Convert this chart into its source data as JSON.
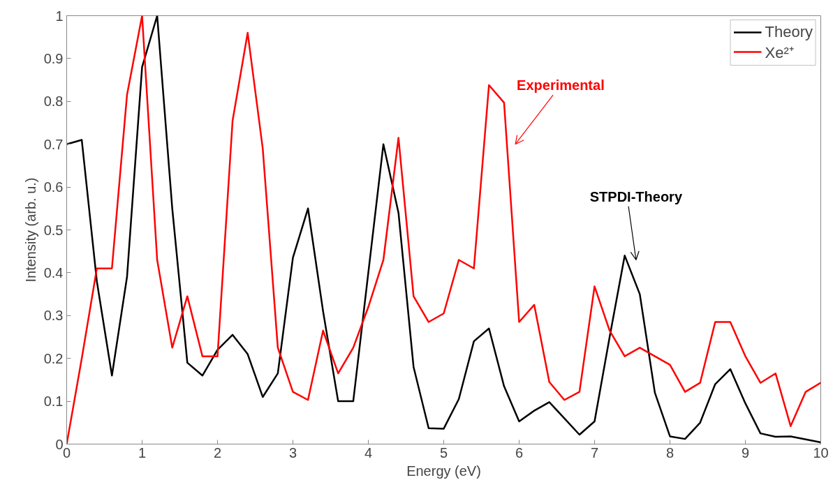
{
  "chart_data": {
    "type": "line",
    "xlabel": "Energy (eV)",
    "ylabel": "Intensity (arb. u.)",
    "x": [
      0,
      0.2,
      0.4,
      0.6,
      0.8,
      1.0,
      1.2,
      1.4,
      1.6,
      1.8,
      2.0,
      2.2,
      2.4,
      2.6,
      2.8,
      3.0,
      3.2,
      3.4,
      3.6,
      3.8,
      4.0,
      4.2,
      4.4,
      4.6,
      4.8,
      5.0,
      5.2,
      5.4,
      5.6,
      5.8,
      6.0,
      6.2,
      6.4,
      6.6,
      6.8,
      7.0,
      7.2,
      7.4,
      7.6,
      7.8,
      8.0,
      8.2,
      8.4,
      8.6,
      8.8,
      9.0,
      9.2,
      9.4,
      9.6,
      9.8,
      10
    ],
    "series": [
      {
        "name": "Theory",
        "color": "#000000",
        "values": [
          0.7,
          0.71,
          0.38,
          0.16,
          0.39,
          0.88,
          1.0,
          0.55,
          0.19,
          0.16,
          0.22,
          0.255,
          0.21,
          0.11,
          0.165,
          0.435,
          0.55,
          0.31,
          0.1,
          0.1,
          0.4,
          0.7,
          0.54,
          0.18,
          0.037,
          0.036,
          0.105,
          0.24,
          0.27,
          0.135,
          0.053,
          0.078,
          0.098,
          0.06,
          0.022,
          0.053,
          0.25,
          0.44,
          0.35,
          0.12,
          0.018,
          0.012,
          0.05,
          0.14,
          0.175,
          0.095,
          0.025,
          0.017,
          0.018,
          0.011,
          0.004
        ]
      },
      {
        "name": "Xe²⁺",
        "color": "#ff0000",
        "values": [
          0,
          0.2,
          0.41,
          0.41,
          0.815,
          1.0,
          0.43,
          0.225,
          0.345,
          0.205,
          0.205,
          0.755,
          0.96,
          0.69,
          0.225,
          0.122,
          0.103,
          0.265,
          0.165,
          0.225,
          0.32,
          0.43,
          0.715,
          0.345,
          0.285,
          0.305,
          0.43,
          0.41,
          0.838,
          0.797,
          0.285,
          0.325,
          0.145,
          0.103,
          0.122,
          0.368,
          0.265,
          0.205,
          0.225,
          0.205,
          0.185,
          0.122,
          0.143,
          0.285,
          0.285,
          0.205,
          0.143,
          0.165,
          0.042,
          0.122,
          0.143
        ]
      }
    ],
    "annotations": [
      "Experimental",
      "STPDI-Theory"
    ],
    "xlim": [
      0,
      10
    ],
    "xticks": [
      0,
      1,
      2,
      3,
      4,
      5,
      6,
      7,
      8,
      9,
      10
    ],
    "ylim": [
      0,
      1
    ],
    "yticks": [
      0,
      0.1,
      0.2,
      0.3,
      0.4,
      0.5,
      0.6,
      0.7,
      0.8,
      0.9,
      1
    ],
    "grid": false,
    "legend": "top right",
    "marker": "none",
    "line_style": "solid"
  }
}
